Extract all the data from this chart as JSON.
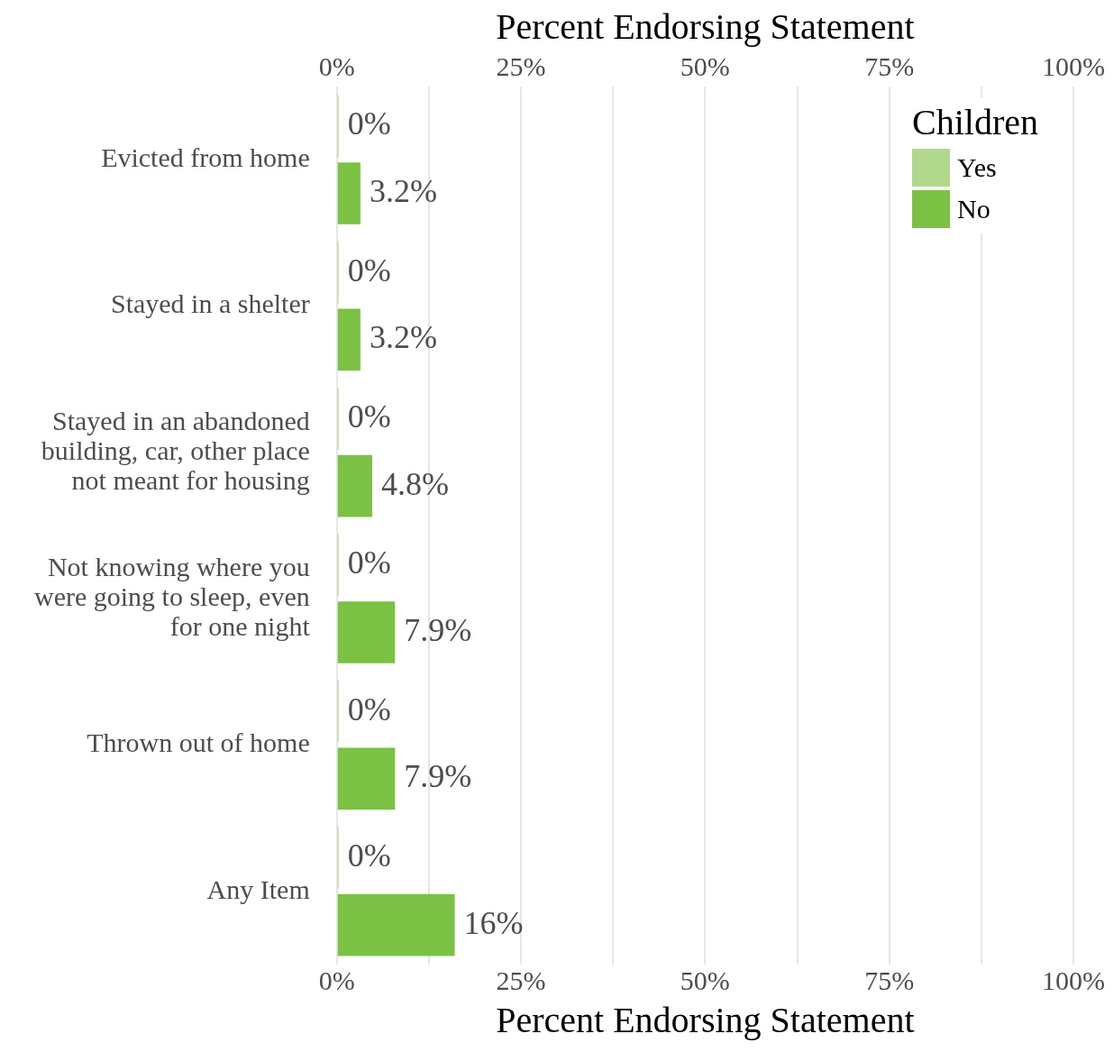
{
  "chart_data": {
    "type": "bar",
    "orientation": "horizontal",
    "xlabel": "Percent Endorsing Statement",
    "x2label": "Percent Endorsing Statement",
    "legend_title": "Children",
    "legend": "top right",
    "grid": "x",
    "categories": [
      "Evicted from home",
      "Stayed in a shelter",
      "Stayed in an abandoned building, car, other place not meant for housing",
      "Not knowing where you were going to sleep, even for one night",
      "Thrown out of home",
      "Any Item"
    ],
    "series": [
      {
        "name": "Yes",
        "color": "#b0d98c",
        "values": [
          0,
          0,
          0,
          0,
          0,
          0
        ],
        "value_labels": [
          "0%",
          "0%",
          "0%",
          "0%",
          "0%",
          "0%"
        ]
      },
      {
        "name": "No",
        "color": "#7bc143",
        "values": [
          3.2,
          3.2,
          4.8,
          7.9,
          7.9,
          16
        ],
        "value_labels": [
          "3.2%",
          "3.2%",
          "4.8%",
          "7.9%",
          "7.9%",
          "16%"
        ]
      }
    ],
    "xlim": [
      0,
      100
    ],
    "xticks": [
      {
        "value": 0,
        "label": "0%"
      },
      {
        "value": 12.5,
        "label": null
      },
      {
        "value": 25,
        "label": "25%"
      },
      {
        "value": 37.5,
        "label": null
      },
      {
        "value": 50,
        "label": "50%"
      },
      {
        "value": 62.5,
        "label": null
      },
      {
        "value": 75,
        "label": "75%"
      },
      {
        "value": 87.5,
        "label": null
      },
      {
        "value": 100,
        "label": "100%"
      }
    ],
    "x2lim": [
      0,
      100
    ],
    "x2ticks": [
      {
        "value": 0,
        "label": "0%"
      },
      {
        "value": 25,
        "label": "25%"
      },
      {
        "value": 50,
        "label": "50%"
      },
      {
        "value": 75,
        "label": "75%"
      },
      {
        "value": 100,
        "label": "100%"
      }
    ]
  }
}
